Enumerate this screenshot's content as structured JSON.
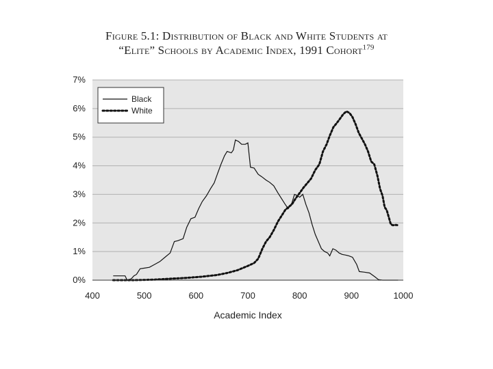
{
  "title": {
    "line1": "Figure 5.1: Distribution of Black and White Students at",
    "line2": "“Elite” Schools by Academic Index, 1991 Cohort",
    "superscript": "179"
  },
  "chart_data": {
    "type": "line",
    "title": "Figure 5.1: Distribution of Black and White Students at “Elite” Schools by Academic Index, 1991 Cohort",
    "xlabel": "Academic Index",
    "ylabel": "",
    "xlim": [
      400,
      1000
    ],
    "ylim": [
      0,
      7
    ],
    "x_ticks": [
      "400",
      "500",
      "600",
      "700",
      "800",
      "900",
      "1000"
    ],
    "y_ticks": [
      "0%",
      "1%",
      "2%",
      "3%",
      "4%",
      "5%",
      "6%",
      "7%"
    ],
    "grid": true,
    "legend_position": "top-left",
    "series": [
      {
        "name": "Black",
        "style": "solid",
        "color": "#111111",
        "points": [
          [
            440,
            0.15
          ],
          [
            455,
            0.15
          ],
          [
            463,
            0.15
          ],
          [
            467,
            0.0
          ],
          [
            475,
            0.05
          ],
          [
            480,
            0.15
          ],
          [
            485,
            0.2
          ],
          [
            492,
            0.4
          ],
          [
            500,
            0.42
          ],
          [
            510,
            0.45
          ],
          [
            520,
            0.55
          ],
          [
            530,
            0.65
          ],
          [
            540,
            0.8
          ],
          [
            550,
            0.95
          ],
          [
            558,
            1.35
          ],
          [
            565,
            1.38
          ],
          [
            575,
            1.45
          ],
          [
            582,
            1.85
          ],
          [
            590,
            2.15
          ],
          [
            598,
            2.2
          ],
          [
            605,
            2.5
          ],
          [
            612,
            2.75
          ],
          [
            620,
            2.95
          ],
          [
            628,
            3.2
          ],
          [
            635,
            3.4
          ],
          [
            642,
            3.75
          ],
          [
            648,
            4.05
          ],
          [
            655,
            4.35
          ],
          [
            660,
            4.5
          ],
          [
            668,
            4.45
          ],
          [
            672,
            4.55
          ],
          [
            676,
            4.9
          ],
          [
            682,
            4.85
          ],
          [
            688,
            4.75
          ],
          [
            695,
            4.75
          ],
          [
            700,
            4.8
          ],
          [
            705,
            3.95
          ],
          [
            712,
            3.92
          ],
          [
            720,
            3.7
          ],
          [
            728,
            3.6
          ],
          [
            735,
            3.5
          ],
          [
            742,
            3.42
          ],
          [
            750,
            3.3
          ],
          [
            758,
            3.05
          ],
          [
            765,
            2.85
          ],
          [
            772,
            2.65
          ],
          [
            778,
            2.5
          ],
          [
            785,
            2.7
          ],
          [
            790,
            3.0
          ],
          [
            796,
            2.95
          ],
          [
            800,
            2.9
          ],
          [
            806,
            3.0
          ],
          [
            812,
            2.65
          ],
          [
            818,
            2.35
          ],
          [
            824,
            1.95
          ],
          [
            830,
            1.6
          ],
          [
            836,
            1.35
          ],
          [
            842,
            1.1
          ],
          [
            848,
            1.0
          ],
          [
            854,
            0.95
          ],
          [
            858,
            0.85
          ],
          [
            864,
            1.1
          ],
          [
            870,
            1.05
          ],
          [
            876,
            0.95
          ],
          [
            882,
            0.9
          ],
          [
            888,
            0.88
          ],
          [
            895,
            0.85
          ],
          [
            902,
            0.8
          ],
          [
            910,
            0.55
          ],
          [
            915,
            0.3
          ],
          [
            925,
            0.28
          ],
          [
            935,
            0.25
          ],
          [
            945,
            0.12
          ],
          [
            952,
            0.02
          ],
          [
            960,
            0.0
          ],
          [
            975,
            0.0
          ],
          [
            990,
            0.0
          ]
        ]
      },
      {
        "name": "White",
        "style": "dotted",
        "color": "#111111",
        "points": [
          [
            440,
            0.0
          ],
          [
            480,
            0.0
          ],
          [
            520,
            0.02
          ],
          [
            550,
            0.05
          ],
          [
            580,
            0.08
          ],
          [
            610,
            0.12
          ],
          [
            640,
            0.18
          ],
          [
            660,
            0.25
          ],
          [
            680,
            0.35
          ],
          [
            700,
            0.5
          ],
          [
            712,
            0.6
          ],
          [
            720,
            0.75
          ],
          [
            728,
            1.1
          ],
          [
            735,
            1.35
          ],
          [
            742,
            1.5
          ],
          [
            750,
            1.75
          ],
          [
            758,
            2.05
          ],
          [
            765,
            2.25
          ],
          [
            772,
            2.45
          ],
          [
            778,
            2.55
          ],
          [
            785,
            2.65
          ],
          [
            792,
            2.85
          ],
          [
            800,
            3.05
          ],
          [
            808,
            3.25
          ],
          [
            815,
            3.4
          ],
          [
            822,
            3.55
          ],
          [
            830,
            3.85
          ],
          [
            838,
            4.05
          ],
          [
            845,
            4.5
          ],
          [
            852,
            4.75
          ],
          [
            858,
            5.05
          ],
          [
            865,
            5.35
          ],
          [
            872,
            5.5
          ],
          [
            878,
            5.65
          ],
          [
            884,
            5.8
          ],
          [
            890,
            5.9
          ],
          [
            896,
            5.85
          ],
          [
            902,
            5.7
          ],
          [
            908,
            5.45
          ],
          [
            914,
            5.15
          ],
          [
            920,
            4.95
          ],
          [
            926,
            4.75
          ],
          [
            932,
            4.5
          ],
          [
            938,
            4.15
          ],
          [
            944,
            4.05
          ],
          [
            950,
            3.65
          ],
          [
            955,
            3.2
          ],
          [
            960,
            2.95
          ],
          [
            964,
            2.55
          ],
          [
            968,
            2.45
          ],
          [
            972,
            2.2
          ],
          [
            976,
            1.95
          ],
          [
            980,
            1.92
          ],
          [
            986,
            1.93
          ],
          [
            990,
            1.92
          ]
        ]
      }
    ]
  }
}
